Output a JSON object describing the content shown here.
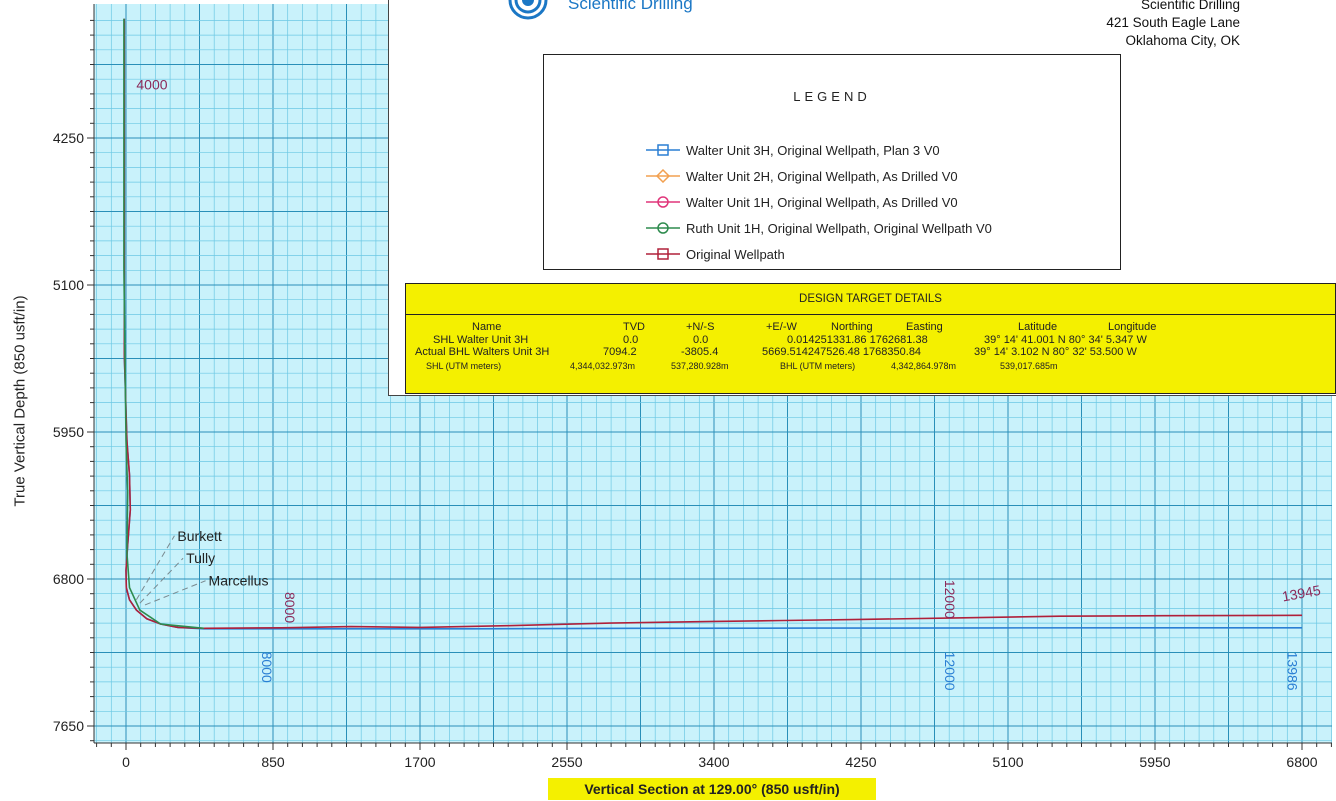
{
  "header": {
    "company": "Scientific Drilling",
    "address_lines": [
      "Scientific Drilling",
      "421 South Eagle Lane",
      "Oklahoma City, OK"
    ]
  },
  "legend": {
    "title": "LEGEND",
    "items": [
      {
        "label": "Walter Unit 3H, Original Wellpath, Plan 3 V0",
        "color": "#2a7fd4",
        "marker": "square"
      },
      {
        "label": "Walter Unit 2H, Original Wellpath, As Drilled V0",
        "color": "#f2a050",
        "marker": "diamond"
      },
      {
        "label": "Walter Unit 1H, Original Wellpath, As Drilled V0",
        "color": "#e0357a",
        "marker": "circle"
      },
      {
        "label": "Ruth Unit 1H, Original Wellpath, Original Wellpath V0",
        "color": "#2e8b4e",
        "marker": "circle"
      },
      {
        "label": "Original Wellpath",
        "color": "#b0203a",
        "marker": "square"
      }
    ]
  },
  "design_target": {
    "title": "DESIGN TARGET DETAILS",
    "headers": {
      "name": "Name",
      "tvd": "TVD",
      "ns": "+N/-S",
      "ew": "+E/-W",
      "northing": "Northing",
      "easting": "Easting",
      "latitude": "Latitude",
      "longitude": "Longitude"
    },
    "row1": {
      "name": "SHL Walter Unit 3H",
      "tvd": "0.0",
      "ns": "0.0",
      "ew_north_east": "0.014251331.86 1762681.38",
      "lat_lon": "39° 14' 41.001 N 80° 34' 5.347 W"
    },
    "row2": {
      "name": "Actual BHL Walters Unit 3H",
      "tvd": "7094.2",
      "ns": "-3805.4",
      "ew_north_east": "5669.514247526.48 1768350.84",
      "lat_lon": "39° 14' 3.102 N 80° 32' 53.500 W"
    },
    "row3": {
      "shl_label": "SHL (UTM meters)",
      "shl_north": "4,344,032.973m",
      "shl_east": "537,280.928m",
      "bhl_label": "BHL (UTM meters)",
      "bhl_north": "4,342,864.978m",
      "bhl_east": "539,017.685m"
    }
  },
  "chart_data": {
    "type": "line",
    "title": "",
    "xlabel": "Vertical Section at 129.00° (850 usft/in)",
    "ylabel": "True Vertical Depth (850 usft/in)",
    "xlim": [
      -170,
      7010
    ],
    "ylim": [
      3560,
      7820
    ],
    "y_inverted": true,
    "grid": true,
    "x_ticks": [
      0,
      850,
      1700,
      2550,
      3400,
      4250,
      5100,
      5950,
      6800
    ],
    "y_ticks": [
      4250,
      5100,
      5950,
      6800,
      7650
    ],
    "series": [
      {
        "name": "Walter Unit 3H, Original Wellpath, Plan 3 V0",
        "color": "#2a7fd4",
        "x": [
          -10,
          -10,
          -10,
          5,
          20,
          25,
          10,
          0,
          2,
          20,
          60,
          120,
          200,
          300,
          450,
          900,
          2000,
          3000,
          4000,
          5000,
          6000,
          6800
        ],
        "y": [
          3560,
          4500,
          5500,
          6000,
          6200,
          6400,
          6600,
          6750,
          6850,
          6920,
          6980,
          7030,
          7060,
          7080,
          7088,
          7088,
          7088,
          7085,
          7084,
          7083,
          7082,
          7082
        ]
      },
      {
        "name": "Original Wellpath",
        "color": "#b0203a",
        "x": [
          -10,
          -10,
          -10,
          5,
          20,
          25,
          10,
          0,
          2,
          20,
          60,
          120,
          200,
          300,
          450,
          900,
          1300,
          1700,
          2200,
          2800,
          3400,
          3800,
          4200,
          4800,
          5400,
          6000,
          6800
        ],
        "y": [
          3560,
          4500,
          5500,
          6000,
          6200,
          6400,
          6600,
          6750,
          6850,
          6920,
          6980,
          7030,
          7060,
          7080,
          7085,
          7082,
          7075,
          7080,
          7070,
          7055,
          7045,
          7040,
          7035,
          7025,
          7015,
          7012,
          7010
        ]
      },
      {
        "name": "Ruth Unit 1H, Original Wellpath, Original Wellpath V0",
        "color": "#2e8b4e",
        "x": [
          -12,
          -12,
          0,
          10,
          5,
          20,
          80,
          200,
          450
        ],
        "y": [
          3560,
          5000,
          6000,
          6300,
          6650,
          6850,
          6980,
          7060,
          7085
        ]
      }
    ],
    "formations": [
      {
        "label": "Burkett",
        "x1": 60,
        "y1": 6920,
        "x2": 280,
        "y2": 6550
      },
      {
        "label": "Tully",
        "x1": 80,
        "y1": 6940,
        "x2": 330,
        "y2": 6680
      },
      {
        "label": "Marcellus",
        "x1": 110,
        "y1": 6950,
        "x2": 460,
        "y2": 6810
      }
    ],
    "annotations": [
      {
        "text": "4000",
        "x": 60,
        "y": 3970,
        "color": "#8b2a5a",
        "rotate": 0
      },
      {
        "text": "8000",
        "x": 920,
        "y": 6875,
        "color": "#8b2a5a",
        "rotate": 90
      },
      {
        "text": "8000",
        "x": 785,
        "y": 7220,
        "color": "#2a7fd4",
        "rotate": 90
      },
      {
        "text": "12000",
        "x": 4735,
        "y": 6805,
        "color": "#8b2a5a",
        "rotate": 90
      },
      {
        "text": "12000",
        "x": 4735,
        "y": 7220,
        "color": "#2a7fd4",
        "rotate": 90
      },
      {
        "text": "13945",
        "x": 6690,
        "y": 6930,
        "color": "#8b2a5a",
        "rotate": -10
      },
      {
        "text": "13986",
        "x": 6715,
        "y": 7220,
        "color": "#2a7fd4",
        "rotate": 90
      }
    ]
  }
}
